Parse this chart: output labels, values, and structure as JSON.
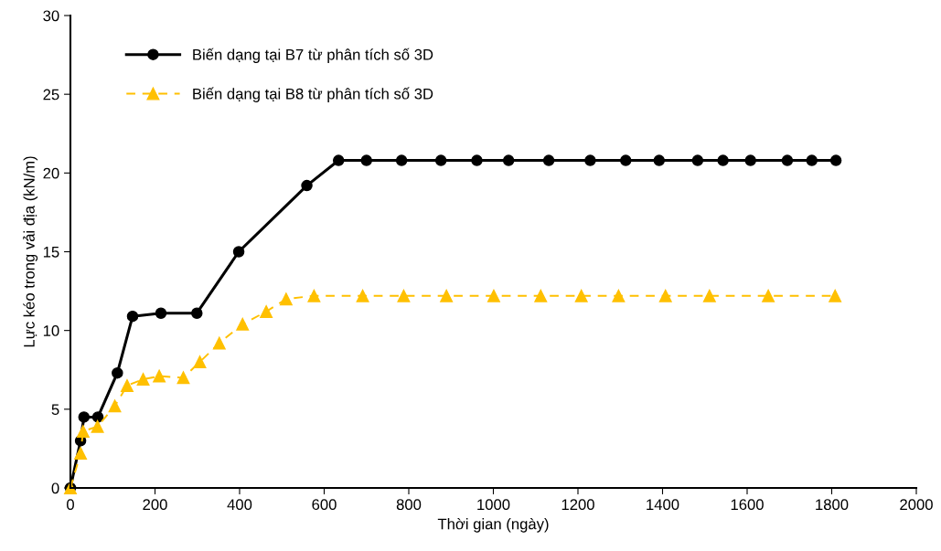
{
  "chart_data": {
    "type": "line",
    "xlabel": "Thời gian (ngày)",
    "ylabel": "Lực kéo trong vải địa (kN/m)",
    "xlim": [
      0,
      2000
    ],
    "xticks": [
      0,
      200,
      400,
      600,
      800,
      1000,
      1200,
      1400,
      1600,
      1800,
      2000
    ],
    "ylim": [
      0,
      30
    ],
    "yticks": [
      0,
      5,
      10,
      15,
      20,
      25,
      30
    ],
    "grid": false,
    "legend": "top left",
    "series": [
      {
        "name": "Biến dạng tại B7 từ phân tích số 3D",
        "color": "#000000",
        "marker": "circle",
        "line_style": "solid",
        "x": [
          0,
          24,
          32,
          65,
          111,
          147,
          214,
          299,
          398,
          559,
          634,
          700,
          783,
          876,
          961,
          1036,
          1131,
          1229,
          1313,
          1392,
          1483,
          1543,
          1608,
          1695,
          1753,
          1810
        ],
        "values": [
          0,
          3.0,
          4.5,
          4.5,
          7.3,
          10.9,
          11.1,
          11.1,
          15.0,
          19.2,
          20.8,
          20.8,
          20.8,
          20.8,
          20.8,
          20.8,
          20.8,
          20.8,
          20.8,
          20.8,
          20.8,
          20.8,
          20.8,
          20.8,
          20.8,
          20.8
        ]
      },
      {
        "name": "Biến dạng tại B8 từ phân tích số 3D",
        "color": "#ffc000",
        "marker": "triangle",
        "line_style": "dashed",
        "x": [
          0,
          24,
          30,
          64,
          105,
          134,
          172,
          210,
          267,
          306,
          352,
          407,
          463,
          510,
          576,
          691,
          788,
          889,
          1001,
          1112,
          1208,
          1296,
          1407,
          1511,
          1650,
          1808
        ],
        "values": [
          0,
          2.2,
          3.6,
          3.9,
          5.2,
          6.5,
          6.9,
          7.1,
          7.0,
          8.0,
          9.2,
          10.4,
          11.2,
          12.0,
          12.2,
          12.2,
          12.2,
          12.2,
          12.2,
          12.2,
          12.2,
          12.2,
          12.2,
          12.2,
          12.2,
          12.2
        ]
      }
    ]
  }
}
